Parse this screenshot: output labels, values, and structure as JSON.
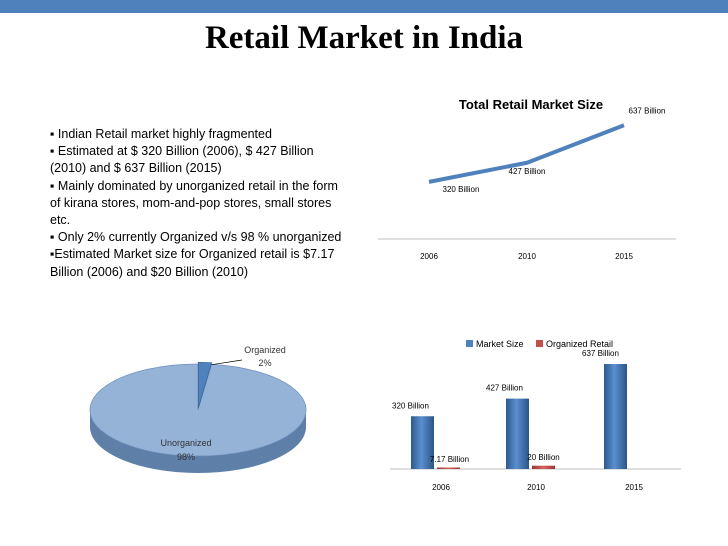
{
  "slide": {
    "title": "Retail Market in India",
    "bullets": [
      "▪ Indian Retail market highly fragmented",
      "▪ Estimated at $ 320 Billion (2006), $ 427 Billion (2010) and $ 637 Billion (2015)",
      "▪ Mainly dominated by unorganized retail in the form of kirana stores, mom-and-pop stores, small stores etc.",
      "▪ Only 2% currently Organized v/s 98 % unorganized",
      "▪Estimated Market size for Organized retail is $7.17 Billion (2006) and $20 Billion (2010)"
    ]
  },
  "colors": {
    "accent": "#4f81bd",
    "series_red": "#c0504d",
    "pie_main": "#95b3d7",
    "pie_small": "#4f81bd"
  },
  "chart_data": [
    {
      "type": "line",
      "title": "Total Retail Market Size",
      "categories": [
        "2006",
        "2010",
        "2015"
      ],
      "values": [
        320,
        427,
        637
      ],
      "data_labels": [
        "320 Billion",
        "427 Billion",
        "637 Billion"
      ],
      "ylim": [
        0,
        700
      ],
      "grid": false
    },
    {
      "type": "pie",
      "slices": [
        {
          "name": "Organized",
          "value": 2,
          "label": "2%"
        },
        {
          "name": "Unorganized",
          "value": 98,
          "label": "98%"
        }
      ]
    },
    {
      "type": "bar",
      "categories": [
        "2006",
        "2010",
        "2015"
      ],
      "series": [
        {
          "name": "Market Size",
          "values": [
            320,
            427,
            637
          ],
          "data_labels": [
            "320 Billion",
            "427 Billion",
            "637 Billion"
          ]
        },
        {
          "name": "Organized Retail",
          "values": [
            7.17,
            20,
            null
          ],
          "data_labels": [
            "7.17 Billion",
            "20 Billion",
            ""
          ]
        }
      ],
      "ylim": [
        0,
        700
      ],
      "legend": "top"
    }
  ]
}
